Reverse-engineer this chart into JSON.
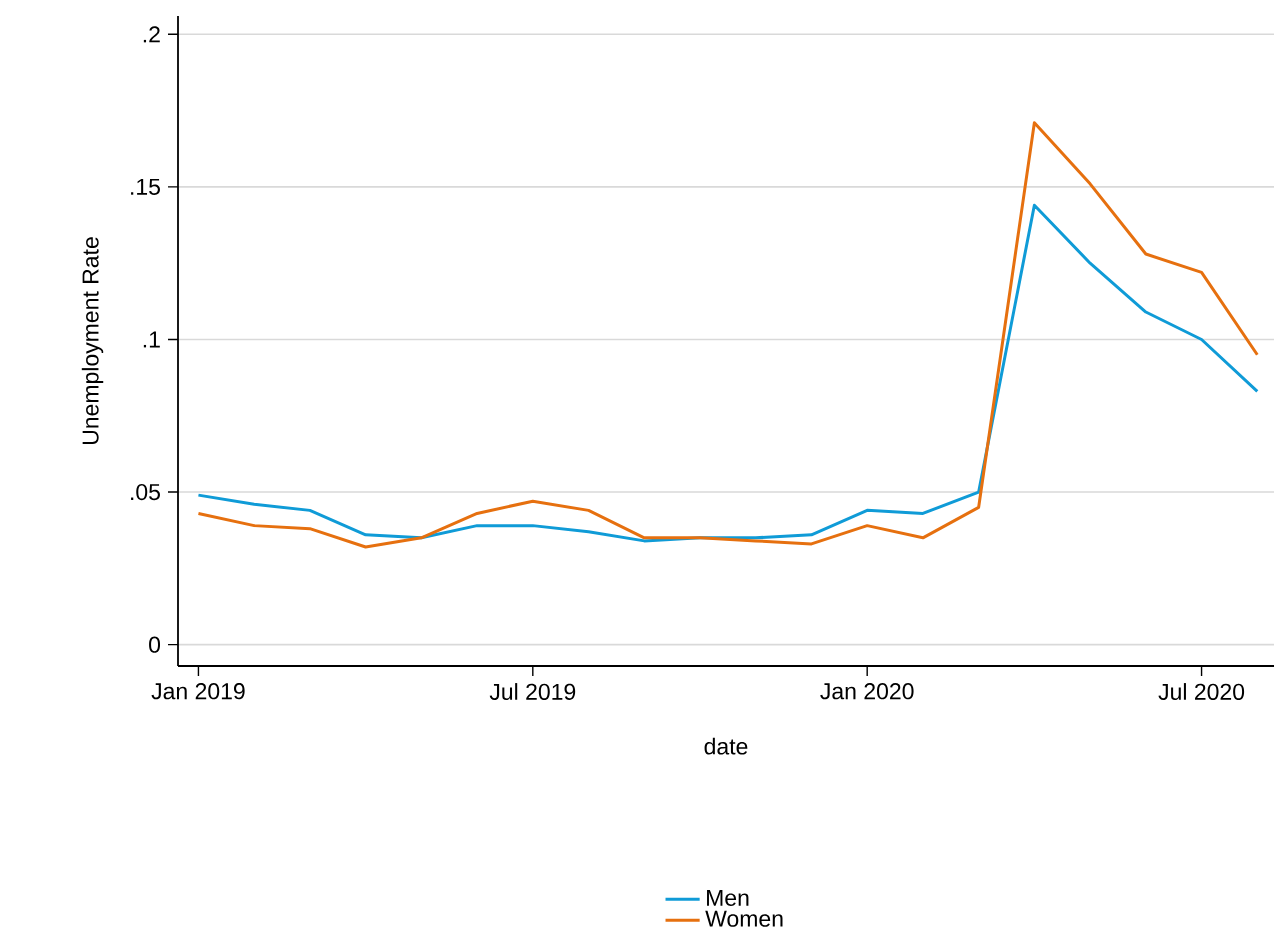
{
  "chart_data": {
    "type": "line",
    "xlabel": "date",
    "ylabel": "Unemployment Rate",
    "x": [
      "2019-01",
      "2019-02",
      "2019-03",
      "2019-04",
      "2019-05",
      "2019-06",
      "2019-07",
      "2019-08",
      "2019-09",
      "2019-10",
      "2019-11",
      "2019-12",
      "2020-01",
      "2020-02",
      "2020-03",
      "2020-04",
      "2020-05",
      "2020-06",
      "2020-07",
      "2020-08"
    ],
    "series": [
      {
        "name": "Men",
        "color": "#0f9bd7",
        "values": [
          0.049,
          0.046,
          0.044,
          0.036,
          0.035,
          0.039,
          0.039,
          0.037,
          0.034,
          0.035,
          0.035,
          0.036,
          0.044,
          0.043,
          0.05,
          0.144,
          0.125,
          0.109,
          0.1,
          0.083
        ]
      },
      {
        "name": "Women",
        "color": "#e6700f",
        "values": [
          0.043,
          0.039,
          0.038,
          0.032,
          0.035,
          0.043,
          0.047,
          0.044,
          0.035,
          0.035,
          0.034,
          0.033,
          0.039,
          0.035,
          0.045,
          0.171,
          0.151,
          0.128,
          0.122,
          0.095
        ]
      }
    ],
    "xlim": [
      "2018-12-20",
      "2020-08-10"
    ],
    "xticks": [
      {
        "value": "2019-01",
        "label": "Jan 2019"
      },
      {
        "value": "2019-07",
        "label": "Jul 2019"
      },
      {
        "value": "2020-01",
        "label": "Jan 2020"
      },
      {
        "value": "2020-07",
        "label": "Jul 2020"
      }
    ],
    "ylim": [
      -0.007,
      0.206
    ],
    "yticks": [
      0,
      {
        "value": 0.05,
        "label": ".05"
      },
      {
        "value": 0.1,
        "label": ".1"
      },
      {
        "value": 0.15,
        "label": ".15"
      },
      {
        "value": 0.2,
        "label": ".2"
      }
    ],
    "grid": "y",
    "legend": "bottom",
    "line_style": "solid",
    "marker": "none"
  }
}
